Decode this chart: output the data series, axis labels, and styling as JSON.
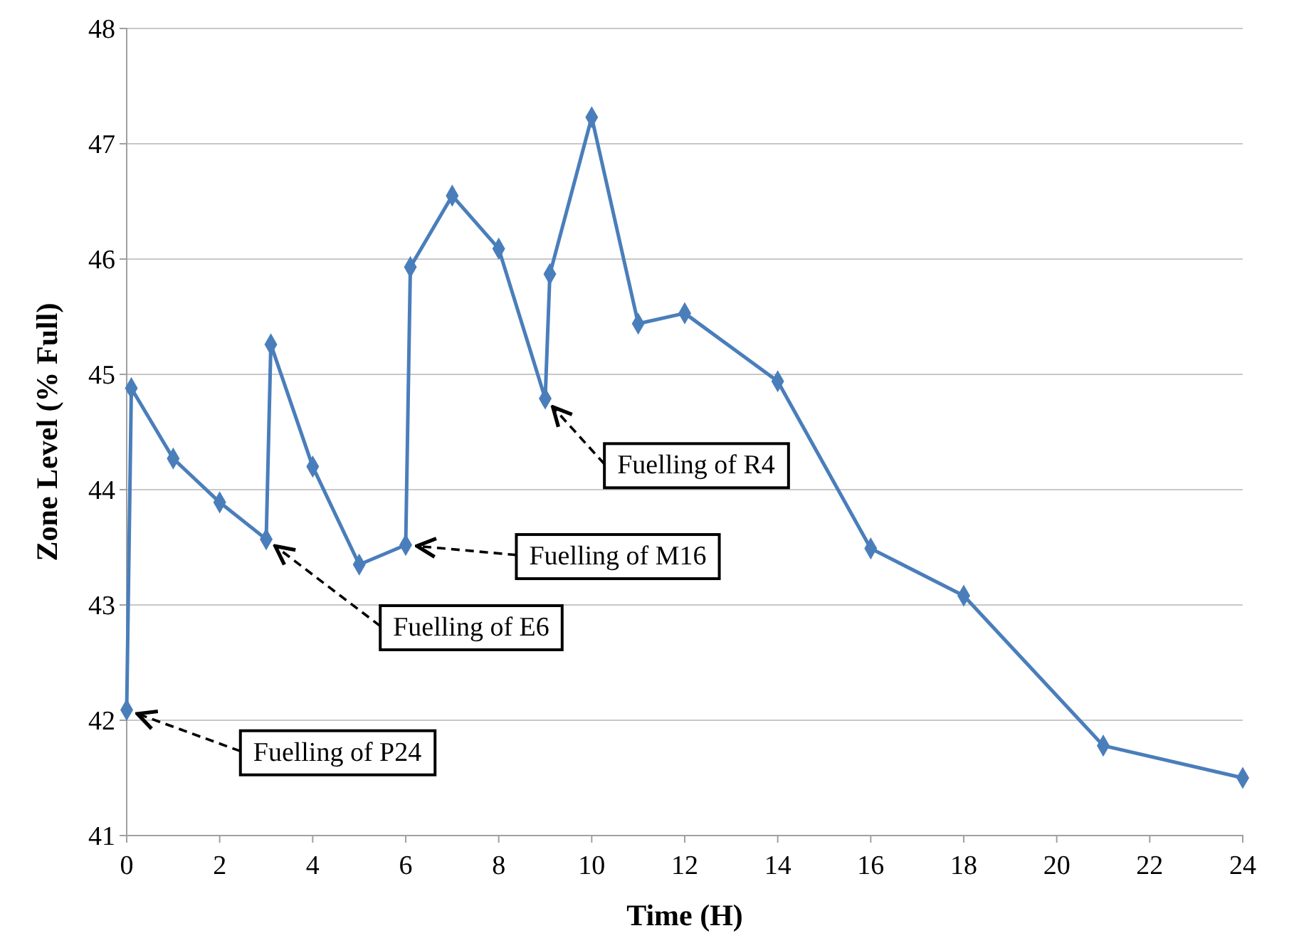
{
  "chart_data": {
    "type": "line",
    "xlabel": "Time (H)",
    "ylabel": "Zone Level (% Full)",
    "x": [
      0,
      0.1,
      1,
      2,
      3,
      3.1,
      4,
      5,
      6,
      6.1,
      7,
      8,
      9,
      9.1,
      10,
      11,
      12,
      14,
      16,
      18,
      21,
      24
    ],
    "series": [
      {
        "color": "#4a7ebb",
        "values": [
          42.09,
          44.88,
          44.27,
          43.89,
          43.57,
          45.26,
          44.2,
          43.35,
          43.52,
          45.93,
          46.55,
          46.09,
          44.79,
          45.87,
          47.23,
          45.44,
          45.53,
          44.94,
          43.49,
          43.08,
          41.78,
          41.5
        ]
      }
    ],
    "xlim": [
      0,
      24
    ],
    "xticks": [
      0,
      2,
      4,
      6,
      8,
      10,
      12,
      14,
      16,
      18,
      20,
      22,
      24
    ],
    "ylim": [
      41,
      48
    ],
    "yticks": [
      41,
      42,
      43,
      44,
      45,
      46,
      47,
      48
    ],
    "grid": "y",
    "marker": "diamond",
    "line_style": "solid",
    "annotations": [
      {
        "text": "Fuelling of P24",
        "x": 0,
        "y": 42.09
      },
      {
        "text": "Fuelling of E6",
        "x": 3,
        "y": 43.57
      },
      {
        "text": "Fuelling of M16",
        "x": 6,
        "y": 43.52
      },
      {
        "text": "Fuelling of R4",
        "x": 9,
        "y": 44.79
      }
    ]
  }
}
